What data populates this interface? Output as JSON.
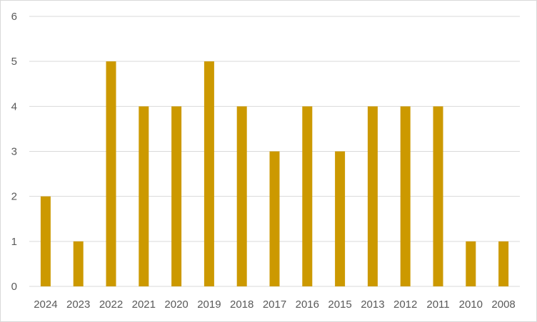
{
  "chart_data": {
    "type": "bar",
    "title": "",
    "xlabel": "",
    "ylabel": "",
    "categories": [
      "2024",
      "2023",
      "2022",
      "2021",
      "2020",
      "2019",
      "2018",
      "2017",
      "2016",
      "2015",
      "2013",
      "2012",
      "2011",
      "2010",
      "2008"
    ],
    "values": [
      2,
      1,
      5,
      4,
      4,
      5,
      4,
      3,
      4,
      3,
      4,
      4,
      4,
      1,
      1
    ],
    "ylim": [
      0,
      6
    ],
    "yticks": [
      "0",
      "1",
      "2",
      "3",
      "4",
      "5",
      "6"
    ],
    "grid": true,
    "legend": "none",
    "bar_color": "#CC9900",
    "grid_color": "#d9d9d9"
  }
}
